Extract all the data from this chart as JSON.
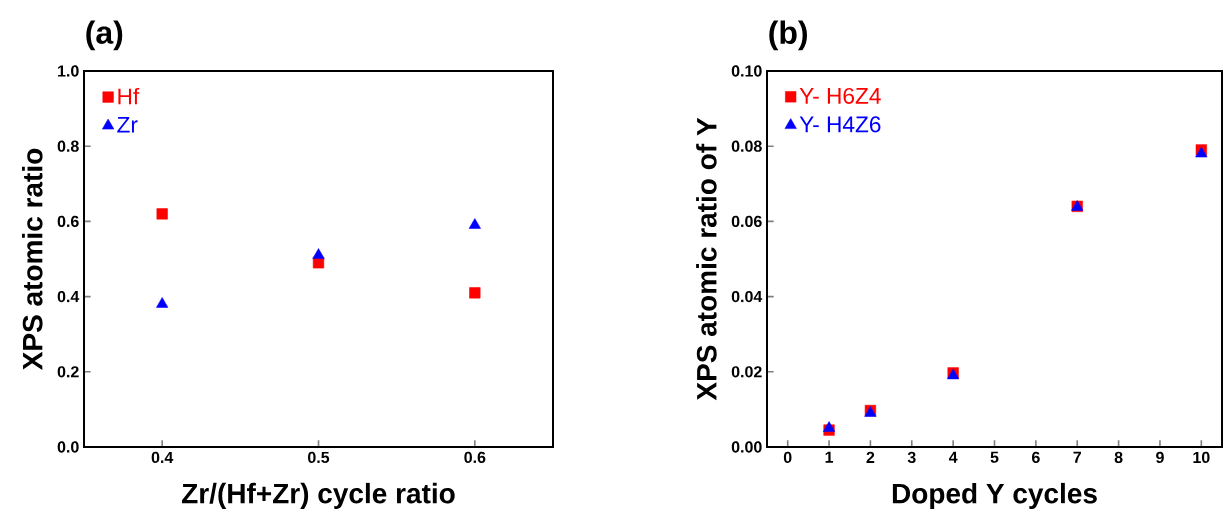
{
  "chart_data": [
    {
      "type": "scatter",
      "title": "(a)",
      "xlabel": "Zr/(Hf+Zr) cycle ratio",
      "ylabel": "XPS atomic ratio",
      "x": [
        0.4,
        0.5,
        0.6
      ],
      "xlim": [
        0.35,
        0.65
      ],
      "xticks": [
        0.4,
        0.5,
        0.6
      ],
      "ylim": [
        0,
        1
      ],
      "yticks": [
        {
          "value": 0,
          "label": "0.0"
        },
        0.2,
        0.4,
        0.6,
        0.8,
        {
          "value": 1,
          "label": "1.0"
        }
      ],
      "legend": "top left",
      "grid": false,
      "series": [
        {
          "name": "Hf",
          "color": "#ff0000",
          "marker": "square",
          "values": [
            0.62,
            0.49,
            0.41
          ]
        },
        {
          "name": "Zr",
          "color": "#0000ff",
          "marker": "triangle",
          "values": [
            0.38,
            0.51,
            0.59
          ]
        }
      ]
    },
    {
      "type": "scatter",
      "title": "(b)",
      "xlabel": "Doped Y cycles",
      "ylabel": "XPS atomic ratio of Y",
      "x": [
        1,
        2,
        4,
        7,
        10
      ],
      "xlim": [
        -0.5,
        10.5
      ],
      "xticks": [
        0,
        1,
        2,
        3,
        4,
        5,
        6,
        7,
        8,
        9,
        10
      ],
      "ylim": [
        0,
        0.1
      ],
      "yticks": [
        {
          "value": 0,
          "label": "0.00"
        },
        0.02,
        0.04,
        0.06,
        0.08,
        {
          "value": 0.1,
          "label": "0.10"
        }
      ],
      "legend": "top left",
      "grid": false,
      "series": [
        {
          "name": "Y- H6Z4",
          "color": "#ff0000",
          "marker": "square",
          "values": [
            0.0045,
            0.0097,
            0.0197,
            0.064,
            0.079
          ]
        },
        {
          "name": "Y- H4Z6",
          "color": "#0000ff",
          "marker": "triangle",
          "values": [
            0.005,
            0.009,
            0.019,
            0.0638,
            0.078
          ]
        }
      ]
    }
  ]
}
